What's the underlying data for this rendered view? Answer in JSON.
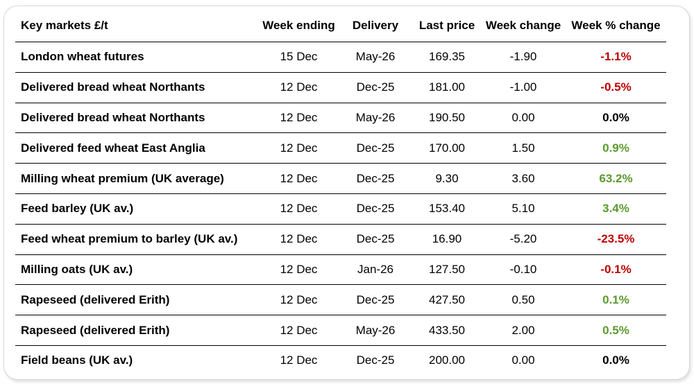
{
  "colors": {
    "negative": "#c00000",
    "positive": "#5b9a2f",
    "neutral": "#000000"
  },
  "table": {
    "headers": [
      "Key markets £/t",
      "Week ending",
      "Delivery",
      "Last price",
      "Week change",
      "Week % change"
    ],
    "rows": [
      {
        "market": "London wheat futures",
        "week_ending": "15 Dec",
        "delivery": "May-26",
        "last_price": "169.35",
        "week_change": "-1.90",
        "week_pct_change": "-1.1%",
        "trend": "neg"
      },
      {
        "market": "Delivered bread wheat Northants",
        "week_ending": "12 Dec",
        "delivery": "Dec-25",
        "last_price": "181.00",
        "week_change": "-1.00",
        "week_pct_change": "-0.5%",
        "trend": "neg"
      },
      {
        "market": "Delivered bread wheat Northants",
        "week_ending": "12 Dec",
        "delivery": "May-26",
        "last_price": "190.50",
        "week_change": "0.00",
        "week_pct_change": "0.0%",
        "trend": "zero"
      },
      {
        "market": "Delivered feed wheat East Anglia",
        "week_ending": "12 Dec",
        "delivery": "Dec-25",
        "last_price": "170.00",
        "week_change": "1.50",
        "week_pct_change": "0.9%",
        "trend": "pos"
      },
      {
        "market": "Milling wheat premium (UK average)",
        "week_ending": "12 Dec",
        "delivery": "Dec-25",
        "last_price": "9.30",
        "week_change": "3.60",
        "week_pct_change": "63.2%",
        "trend": "pos"
      },
      {
        "market": "Feed barley (UK av.)",
        "week_ending": "12 Dec",
        "delivery": "Dec-25",
        "last_price": "153.40",
        "week_change": "5.10",
        "week_pct_change": "3.4%",
        "trend": "pos"
      },
      {
        "market": "Feed wheat premium to barley (UK av.)",
        "week_ending": "12 Dec",
        "delivery": "Dec-25",
        "last_price": "16.90",
        "week_change": "-5.20",
        "week_pct_change": "-23.5%",
        "trend": "neg"
      },
      {
        "market": "Milling oats (UK av.)",
        "week_ending": "12 Dec",
        "delivery": "Jan-26",
        "last_price": "127.50",
        "week_change": "-0.10",
        "week_pct_change": "-0.1%",
        "trend": "neg"
      },
      {
        "market": "Rapeseed (delivered Erith)",
        "week_ending": "12 Dec",
        "delivery": "Dec-25",
        "last_price": "427.50",
        "week_change": "0.50",
        "week_pct_change": "0.1%",
        "trend": "pos"
      },
      {
        "market": "Rapeseed (delivered Erith)",
        "week_ending": "12 Dec",
        "delivery": "May-26",
        "last_price": "433.50",
        "week_change": "2.00",
        "week_pct_change": "0.5%",
        "trend": "pos"
      },
      {
        "market": "Field beans (UK av.)",
        "week_ending": "12 Dec",
        "delivery": "Dec-25",
        "last_price": "200.00",
        "week_change": "0.00",
        "week_pct_change": "0.0%",
        "trend": "zero"
      }
    ]
  }
}
